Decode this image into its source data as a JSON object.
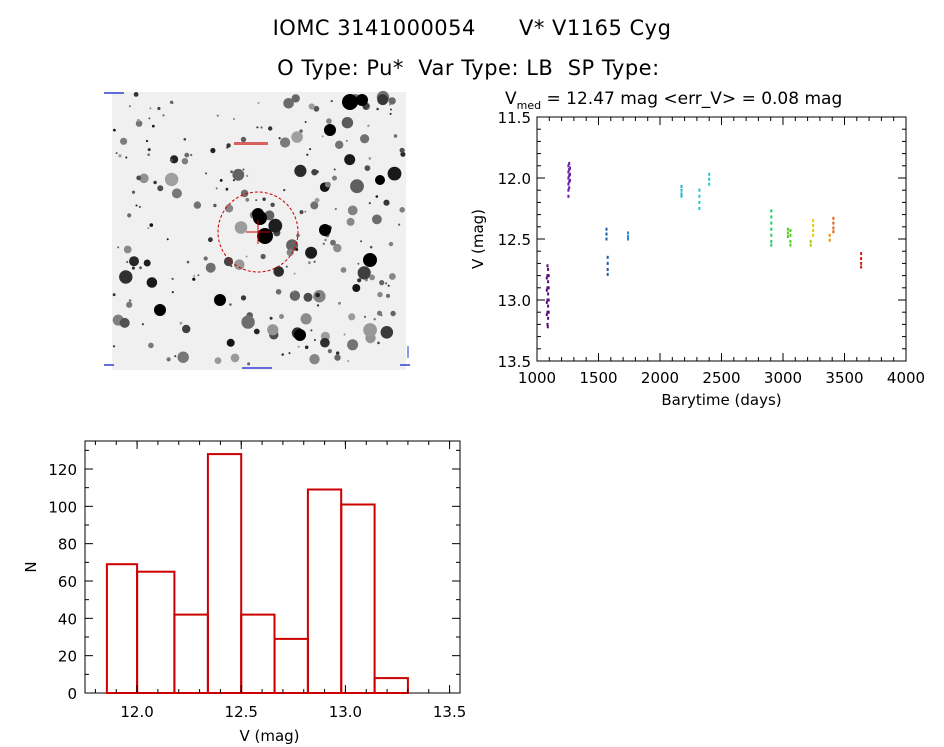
{
  "header": {
    "object_id": "IOMC 3141000054",
    "star_name": "V* V1165 Cyg",
    "o_type_label": "O Type:",
    "o_type_value": "Pu*",
    "var_type_label": "Var Type:",
    "var_type_value": "LB",
    "sp_type_label": "SP Type:",
    "sp_type_value": ""
  },
  "image_panel": {
    "overlay_color": "#cc0000"
  },
  "chart_data": [
    {
      "type": "scatter",
      "title_prefix": "V",
      "title_sub": "med",
      "title_rest": " = 12.47 mag <err_V> = 0.08 mag",
      "xlabel": "Barytime (days)",
      "ylabel": "V (mag)",
      "xlim": [
        1000,
        4000
      ],
      "ylim": [
        13.5,
        11.5
      ],
      "y_inverted": true,
      "xticks": [
        1000,
        1500,
        2000,
        2500,
        3000,
        3500,
        4000
      ],
      "yticks": [
        "11.5",
        "12.0",
        "12.5",
        "13.0",
        "13.5"
      ],
      "grid": false,
      "series": [
        {
          "color": "#5a0a78",
          "points": [
            [
              1085,
              12.72
            ],
            [
              1085,
              12.8
            ],
            [
              1085,
              12.9
            ],
            [
              1085,
              13.0
            ],
            [
              1085,
              13.1
            ],
            [
              1085,
              13.2
            ],
            [
              1090,
              12.75
            ],
            [
              1090,
              12.85
            ],
            [
              1090,
              12.95
            ],
            [
              1090,
              13.05
            ],
            [
              1090,
              13.15
            ],
            [
              1095,
              12.8
            ],
            [
              1095,
              12.9
            ],
            [
              1095,
              13.0
            ],
            [
              1095,
              13.1
            ],
            [
              1080,
              12.82
            ],
            [
              1080,
              12.92
            ],
            [
              1080,
              13.02
            ],
            [
              1080,
              13.12
            ],
            [
              1088,
              13.22
            ]
          ]
        },
        {
          "color": "#6a1aa8",
          "points": [
            [
              1255,
              11.9
            ],
            [
              1255,
              11.95
            ],
            [
              1255,
              12.0
            ],
            [
              1255,
              12.05
            ],
            [
              1255,
              12.1
            ],
            [
              1255,
              12.15
            ],
            [
              1262,
              11.88
            ],
            [
              1262,
              11.93
            ],
            [
              1262,
              11.98
            ],
            [
              1262,
              12.03
            ],
            [
              1262,
              12.08
            ],
            [
              1268,
              11.92
            ],
            [
              1268,
              11.97
            ],
            [
              1268,
              12.02
            ]
          ]
        },
        {
          "color": "#1e5aaa",
          "points": [
            [
              1565,
              12.42
            ],
            [
              1565,
              12.46
            ],
            [
              1565,
              12.5
            ],
            [
              1575,
              12.65
            ],
            [
              1575,
              12.7
            ],
            [
              1575,
              12.75
            ],
            [
              1575,
              12.79
            ]
          ]
        },
        {
          "color": "#2a8ad0",
          "points": [
            [
              1740,
              12.45
            ],
            [
              1740,
              12.48
            ],
            [
              1740,
              12.5
            ]
          ]
        },
        {
          "color": "#22b6d6",
          "points": [
            [
              2175,
              12.07
            ],
            [
              2175,
              12.1
            ],
            [
              2175,
              12.13
            ],
            [
              2175,
              12.15
            ]
          ]
        },
        {
          "color": "#22c8d0",
          "points": [
            [
              2320,
              12.1
            ],
            [
              2320,
              12.15
            ],
            [
              2320,
              12.2
            ],
            [
              2320,
              12.25
            ],
            [
              2400,
              11.97
            ],
            [
              2400,
              12.01
            ],
            [
              2400,
              12.05
            ]
          ]
        },
        {
          "color": "#22cc66",
          "points": [
            [
              2905,
              12.27
            ],
            [
              2905,
              12.32
            ],
            [
              2905,
              12.37
            ],
            [
              2905,
              12.42
            ],
            [
              2905,
              12.47
            ],
            [
              2905,
              12.52
            ],
            [
              2905,
              12.55
            ]
          ]
        },
        {
          "color": "#55cc22",
          "points": [
            [
              3040,
              12.42
            ],
            [
              3040,
              12.45
            ],
            [
              3040,
              12.48
            ],
            [
              3060,
              12.43
            ],
            [
              3060,
              12.47
            ],
            [
              3060,
              12.52
            ],
            [
              3060,
              12.55
            ]
          ]
        },
        {
          "color": "#aacc11",
          "points": [
            [
              3225,
              12.52
            ],
            [
              3225,
              12.55
            ]
          ]
        },
        {
          "color": "#eec800",
          "points": [
            [
              3245,
              12.35
            ],
            [
              3245,
              12.39
            ],
            [
              3245,
              12.43
            ],
            [
              3245,
              12.47
            ]
          ]
        },
        {
          "color": "#ee9000",
          "points": [
            [
              3380,
              12.47
            ],
            [
              3380,
              12.51
            ]
          ]
        },
        {
          "color": "#e06010",
          "points": [
            [
              3410,
              12.33
            ],
            [
              3410,
              12.37
            ],
            [
              3410,
              12.41
            ],
            [
              3410,
              12.44
            ]
          ]
        },
        {
          "color": "#d02010",
          "points": [
            [
              3635,
              12.62
            ],
            [
              3635,
              12.66
            ],
            [
              3635,
              12.7
            ],
            [
              3635,
              12.73
            ]
          ]
        }
      ]
    },
    {
      "type": "bar",
      "subtype": "histogram",
      "xlabel": "V (mag)",
      "ylabel": "N",
      "xlim": [
        11.75,
        13.55
      ],
      "ylim": [
        0,
        135
      ],
      "xticks": [
        "12.0",
        "12.5",
        "13.0",
        "13.5"
      ],
      "yticks": [
        "0",
        "20",
        "40",
        "60",
        "80",
        "100",
        "120"
      ],
      "bar_color": "#cc0000",
      "bins": [
        {
          "x0": 11.855,
          "x1": 12.0,
          "value": 69
        },
        {
          "x0": 12.0,
          "x1": 12.179,
          "value": 65
        },
        {
          "x0": 12.179,
          "x1": 12.34,
          "value": 42
        },
        {
          "x0": 12.34,
          "x1": 12.5,
          "value": 128
        },
        {
          "x0": 12.5,
          "x1": 12.66,
          "value": 42
        },
        {
          "x0": 12.66,
          "x1": 12.82,
          "value": 29
        },
        {
          "x0": 12.82,
          "x1": 12.98,
          "value": 109
        },
        {
          "x0": 12.98,
          "x1": 13.14,
          "value": 101
        },
        {
          "x0": 13.14,
          "x1": 13.3,
          "value": 8
        }
      ]
    }
  ]
}
